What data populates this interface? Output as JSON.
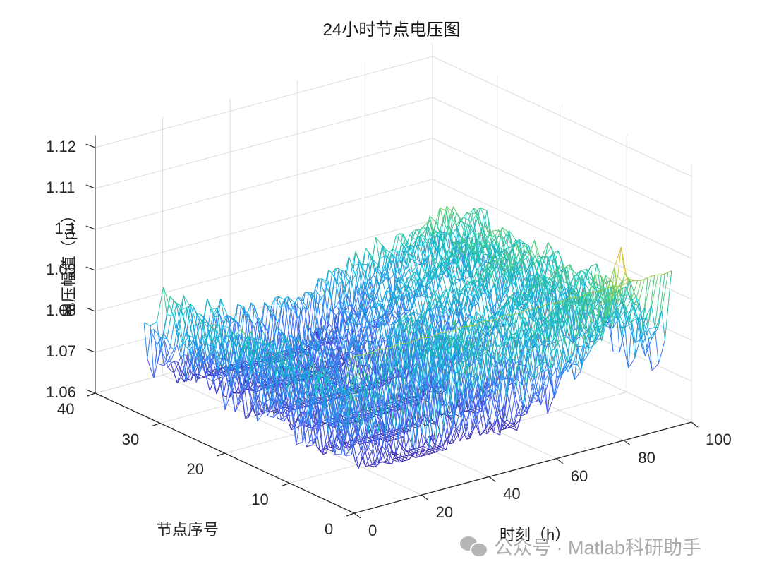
{
  "chart_data": {
    "type": "mesh3d",
    "title": "24小时节点电压图",
    "xlabel": "时刻（h）",
    "ylabel": "节点序号",
    "zlabel": "电压幅值（pu）",
    "x_ticks": [
      "0",
      "20",
      "40",
      "60",
      "80",
      "100"
    ],
    "y_ticks": [
      "0",
      "10",
      "20",
      "30",
      "40"
    ],
    "z_ticks": [
      "1.06",
      "1.07",
      "1.08",
      "1.09",
      "1.1",
      "1.11",
      "1.12"
    ],
    "xlim": [
      0,
      100
    ],
    "ylim": [
      0,
      40
    ],
    "zlim": [
      1.06,
      1.123
    ],
    "grid": true,
    "colormap": "parula",
    "series_summary": {
      "time_points": 96,
      "nodes": 33,
      "z_min_approx": 1.066,
      "z_max_approx": 1.12,
      "slack_node_voltage_approx": 1.1,
      "peak_location_approx": {
        "x": 83,
        "y": 1,
        "z": 1.12
      }
    }
  },
  "watermark": {
    "text": "公众号 · Matlab科研助手",
    "icon": "wechat-icon"
  }
}
